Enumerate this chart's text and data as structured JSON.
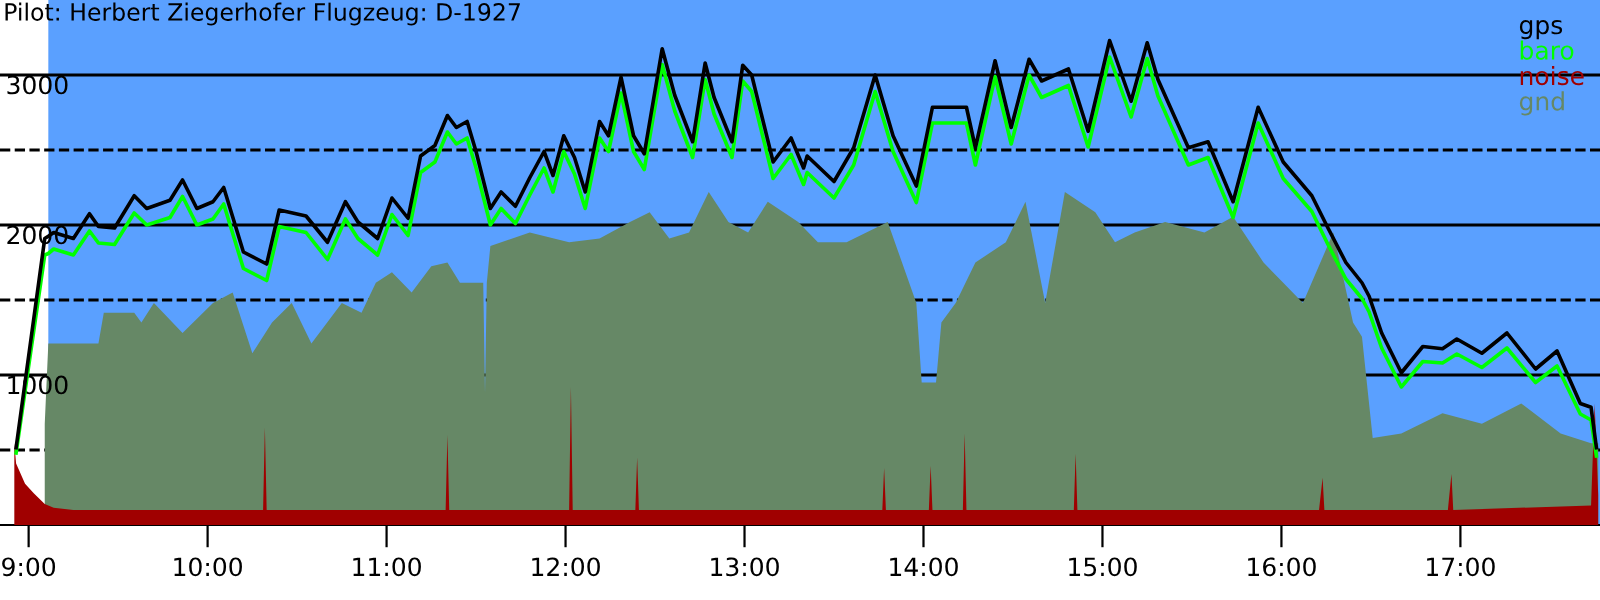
{
  "chart_data": {
    "type": "line",
    "title": "Pilot: Herbert Ziegerhofer Flugzeug: D-1927",
    "xlim": [
      8.84,
      17.78
    ],
    "xticks": [
      {
        "value": 9,
        "label": "9:00"
      },
      {
        "value": 10,
        "label": "10:00"
      },
      {
        "value": 11,
        "label": "11:00"
      },
      {
        "value": 12,
        "label": "12:00"
      },
      {
        "value": 13,
        "label": "13:00"
      },
      {
        "value": 14,
        "label": "14:00"
      },
      {
        "value": 15,
        "label": "15:00"
      },
      {
        "value": 16,
        "label": "16:00"
      },
      {
        "value": 17,
        "label": "17:00"
      }
    ],
    "ylim": [
      0,
      3500
    ],
    "yticks": [
      {
        "value": 500,
        "label": null
      },
      1000,
      {
        "value": 1500,
        "label": null
      },
      2000,
      {
        "value": 2500,
        "label": null
      },
      3000
    ],
    "grid": "y",
    "legend": "top right",
    "bands": [
      {
        "axis": "x",
        "from": 8.84,
        "to": 9.11,
        "label": null,
        "color": "#ffffff"
      }
    ],
    "series": [
      {
        "name": "gnd",
        "type": "area",
        "color": "#668866",
        "x": [
          9.09,
          9.11,
          9.39,
          9.42,
          9.59,
          9.63,
          9.7,
          9.86,
          10.03,
          10.14,
          10.25,
          10.36,
          10.47,
          10.58,
          10.75,
          10.86,
          10.94,
          11.03,
          11.14,
          11.25,
          11.34,
          11.41,
          11.54,
          11.55,
          11.56,
          11.58,
          11.8,
          12.02,
          12.19,
          12.36,
          12.47,
          12.58,
          12.69,
          12.8,
          12.91,
          13.02,
          13.13,
          13.3,
          13.41,
          13.57,
          13.8,
          13.96,
          13.99,
          14.07,
          14.1,
          14.18,
          14.29,
          14.46,
          14.57,
          14.68,
          14.79,
          14.96,
          15.07,
          15.18,
          15.35,
          15.57,
          15.73,
          15.9,
          16.01,
          16.12,
          16.29,
          16.4,
          16.45,
          16.51,
          16.67,
          16.9,
          17.12,
          17.34,
          17.56,
          17.73,
          17.77
        ],
        "values": [
          675,
          1210,
          1210,
          1415,
          1415,
          1350,
          1480,
          1280,
          1480,
          1550,
          1145,
          1350,
          1480,
          1210,
          1480,
          1415,
          1615,
          1685,
          1550,
          1725,
          1750,
          1615,
          1615,
          880,
          1615,
          1860,
          1950,
          1885,
          1910,
          2020,
          2085,
          1910,
          1950,
          2220,
          2020,
          1950,
          2155,
          2020,
          1885,
          1885,
          2020,
          1480,
          950,
          950,
          1350,
          1480,
          1750,
          1885,
          2155,
          1480,
          2220,
          2085,
          1885,
          1950,
          2020,
          1950,
          2055,
          1750,
          1615,
          1480,
          1950,
          1350,
          1255,
          580,
          610,
          745,
          675,
          810,
          610,
          545,
          545
        ]
      },
      {
        "name": "noise",
        "type": "area",
        "color": "#a00000",
        "x": [
          8.92,
          8.93,
          8.98,
          9.03,
          9.09,
          9.14,
          9.25,
          10.31,
          10.32,
          10.33,
          11.33,
          11.34,
          11.35,
          12.02,
          12.03,
          12.04,
          12.39,
          12.4,
          12.41,
          13.77,
          13.78,
          13.79,
          14.03,
          14.04,
          14.05,
          14.22,
          14.23,
          14.24,
          14.84,
          14.85,
          14.86,
          16.21,
          16.23,
          16.24,
          16.93,
          16.95,
          16.96,
          17.73,
          17.75,
          17.77
        ],
        "values": [
          545,
          410,
          275,
          210,
          140,
          115,
          100,
          100,
          650,
          100,
          100,
          600,
          100,
          100,
          920,
          100,
          100,
          450,
          100,
          100,
          380,
          100,
          100,
          395,
          100,
          100,
          610,
          100,
          100,
          475,
          100,
          100,
          315,
          100,
          100,
          340,
          100,
          130,
          810,
          200
        ]
      },
      {
        "name": "baro",
        "color": "#00ff00",
        "x": [
          8.93,
          9.09,
          9.11,
          9.14,
          9.25,
          9.34,
          9.39,
          9.48,
          9.59,
          9.66,
          9.79,
          9.86,
          9.94,
          10.03,
          10.09,
          10.2,
          10.33,
          10.4,
          10.55,
          10.67,
          10.77,
          10.84,
          10.95,
          11.03,
          11.12,
          11.19,
          11.27,
          11.34,
          11.39,
          11.45,
          11.5,
          11.58,
          11.64,
          11.72,
          11.8,
          11.88,
          11.93,
          11.99,
          12.05,
          12.11,
          12.19,
          12.24,
          12.31,
          12.38,
          12.44,
          12.54,
          12.61,
          12.71,
          12.78,
          12.83,
          12.93,
          12.99,
          13.04,
          13.16,
          13.26,
          13.33,
          13.35,
          13.5,
          13.61,
          13.73,
          13.83,
          13.96,
          14.05,
          14.15,
          14.24,
          14.29,
          14.4,
          14.49,
          14.59,
          14.66,
          14.81,
          14.92,
          15.04,
          15.16,
          15.25,
          15.31,
          15.48,
          15.59,
          15.73,
          15.87,
          16.01,
          16.17,
          16.26,
          16.36,
          16.45,
          16.49,
          16.56,
          16.67,
          16.79,
          16.9,
          16.98,
          17.12,
          17.26,
          17.42,
          17.54,
          17.67,
          17.73,
          17.76
        ],
        "values": [
          480,
          1800,
          1810,
          1840,
          1800,
          1960,
          1880,
          1870,
          2080,
          2000,
          2050,
          2190,
          2000,
          2040,
          2140,
          1710,
          1630,
          1990,
          1950,
          1770,
          2040,
          1910,
          1800,
          2070,
          1930,
          2350,
          2420,
          2620,
          2540,
          2580,
          2380,
          2000,
          2110,
          2010,
          2200,
          2380,
          2220,
          2490,
          2340,
          2110,
          2580,
          2490,
          2880,
          2490,
          2370,
          3070,
          2760,
          2450,
          2970,
          2740,
          2450,
          2960,
          2890,
          2310,
          2470,
          2270,
          2350,
          2180,
          2400,
          2890,
          2490,
          2150,
          2680,
          2680,
          2680,
          2400,
          2990,
          2540,
          3000,
          2850,
          2930,
          2520,
          3120,
          2720,
          3110,
          2860,
          2400,
          2450,
          2050,
          2680,
          2310,
          2090,
          1870,
          1640,
          1510,
          1420,
          1180,
          920,
          1090,
          1080,
          1140,
          1050,
          1180,
          950,
          1060,
          740,
          700,
          460
        ]
      },
      {
        "name": "gps",
        "color": "#000000",
        "x": [
          8.93,
          9.09,
          9.11,
          9.14,
          9.25,
          9.34,
          9.39,
          9.48,
          9.59,
          9.66,
          9.79,
          9.86,
          9.94,
          10.03,
          10.09,
          10.2,
          10.33,
          10.4,
          10.55,
          10.67,
          10.77,
          10.84,
          10.95,
          11.03,
          11.12,
          11.19,
          11.27,
          11.34,
          11.39,
          11.45,
          11.5,
          11.58,
          11.64,
          11.72,
          11.8,
          11.88,
          11.93,
          11.99,
          12.05,
          12.11,
          12.19,
          12.24,
          12.31,
          12.38,
          12.44,
          12.54,
          12.61,
          12.71,
          12.78,
          12.83,
          12.93,
          12.99,
          13.04,
          13.16,
          13.26,
          13.33,
          13.35,
          13.5,
          13.61,
          13.73,
          13.83,
          13.96,
          14.05,
          14.15,
          14.24,
          14.29,
          14.4,
          14.49,
          14.59,
          14.66,
          14.81,
          14.92,
          15.04,
          15.16,
          15.25,
          15.31,
          15.48,
          15.59,
          15.73,
          15.87,
          16.01,
          16.17,
          16.26,
          16.36,
          16.45,
          16.49,
          16.56,
          16.67,
          16.79,
          16.9,
          16.98,
          17.12,
          17.26,
          17.42,
          17.54,
          17.67,
          17.73,
          17.76
        ],
        "values": [
          515,
          1910,
          1925,
          1950,
          1910,
          2075,
          1990,
          1980,
          2195,
          2110,
          2165,
          2300,
          2110,
          2155,
          2250,
          1820,
          1740,
          2100,
          2060,
          1885,
          2155,
          2020,
          1910,
          2180,
          2045,
          2460,
          2530,
          2730,
          2650,
          2690,
          2490,
          2110,
          2220,
          2125,
          2315,
          2490,
          2330,
          2595,
          2450,
          2220,
          2690,
          2595,
          2985,
          2595,
          2475,
          3175,
          2865,
          2555,
          3080,
          2850,
          2555,
          3065,
          3000,
          2420,
          2580,
          2380,
          2460,
          2290,
          2515,
          3000,
          2595,
          2260,
          2785,
          2785,
          2785,
          2515,
          3095,
          2650,
          3105,
          2960,
          3040,
          2625,
          3230,
          2825,
          3215,
          2970,
          2515,
          2555,
          2155,
          2785,
          2420,
          2195,
          1980,
          1750,
          1615,
          1525,
          1280,
          1015,
          1190,
          1175,
          1240,
          1145,
          1280,
          1040,
          1160,
          810,
          785,
          515
        ]
      }
    ]
  }
}
